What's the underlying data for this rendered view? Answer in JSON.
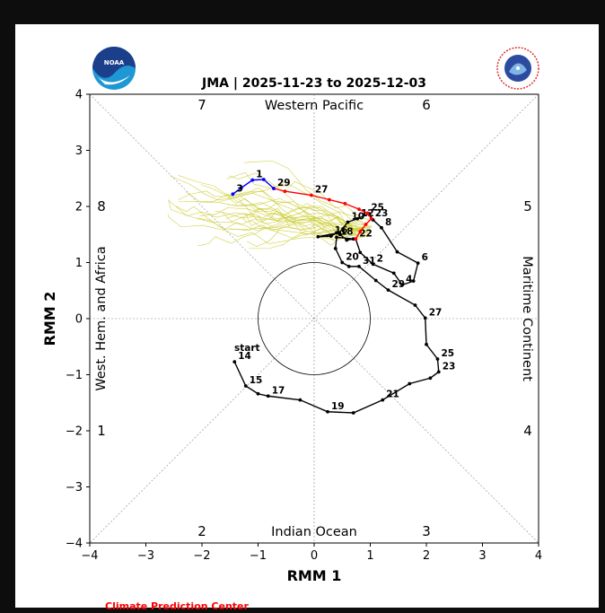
{
  "chart_data": {
    "type": "line",
    "title": "JMA | 2025-11-23 to 2025-12-03",
    "xlabel": "RMM 1",
    "ylabel": "RMM 2",
    "xlim": [
      -4,
      4
    ],
    "ylim": [
      -4,
      4
    ],
    "xticks": [
      "−4",
      "−3",
      "−2",
      "−1",
      "0",
      "1",
      "2",
      "3",
      "4"
    ],
    "yticks": [
      "−4",
      "−3",
      "−2",
      "−1",
      "0",
      "1",
      "2",
      "3",
      "4"
    ],
    "regions": {
      "top": "Western Pacific",
      "bottom": "Indian Ocean",
      "left": "West. Hem. and Africa",
      "right": "Maritime Continent"
    },
    "phase_labels": [
      "1",
      "2",
      "3",
      "4",
      "5",
      "6",
      "7",
      "8"
    ],
    "start_label": "start",
    "credit": "Climate Prediction Center",
    "colors": {
      "observed": "#000000",
      "ensemble": "#cccc33",
      "ensemble_mean_a": "#ff0000",
      "ensemble_mean_b": "#0000ff"
    },
    "series": [
      {
        "name": "",
        "color": "#000000",
        "x": [
          -1.42,
          -1.22,
          -1.0,
          -0.82,
          -0.25,
          0.24,
          0.7,
          1.22,
          1.7,
          2.07,
          2.22,
          2.2,
          2.0,
          1.98,
          1.8,
          1.32,
          1.1,
          0.8,
          0.62,
          0.5,
          0.38,
          0.4,
          0.7,
          0.58,
          0.46,
          0.4,
          0.3,
          0.07,
          0.45,
          0.6,
          0.77,
          0.98,
          1.05,
          1.2,
          1.48,
          1.85,
          1.77,
          1.57,
          1.42,
          1.05,
          0.82,
          0.74
        ],
        "y": [
          -0.77,
          -1.2,
          -1.34,
          -1.38,
          -1.45,
          -1.66,
          -1.68,
          -1.45,
          -1.16,
          -1.06,
          -0.95,
          -0.72,
          -0.46,
          0.01,
          0.24,
          0.51,
          0.68,
          0.93,
          0.93,
          1.0,
          1.25,
          1.45,
          1.42,
          1.4,
          1.5,
          1.53,
          1.47,
          1.46,
          1.53,
          1.72,
          1.78,
          1.87,
          1.76,
          1.62,
          1.19,
          0.99,
          0.67,
          0.6,
          0.81,
          0.97,
          1.18,
          1.42
        ],
        "point_labels": [
          {
            "i": 0,
            "text": "14"
          },
          {
            "i": 1,
            "text": "15"
          },
          {
            "i": 3,
            "text": "17"
          },
          {
            "i": 5,
            "text": "19"
          },
          {
            "i": 7,
            "text": "21"
          },
          {
            "i": 10,
            "text": "23"
          },
          {
            "i": 11,
            "text": "25"
          },
          {
            "i": 13,
            "text": "27"
          },
          {
            "i": 15,
            "text": "29"
          },
          {
            "i": 17,
            "text": "31"
          },
          {
            "i": 19,
            "text": "20"
          },
          {
            "i": 21,
            "text": "18"
          },
          {
            "i": 26,
            "text": "16"
          },
          {
            "i": 29,
            "text": "10"
          },
          {
            "i": 30,
            "text": "12"
          },
          {
            "i": 33,
            "text": "8"
          },
          {
            "i": 35,
            "text": "6"
          },
          {
            "i": 37,
            "text": "4"
          },
          {
            "i": 39,
            "text": "2"
          },
          {
            "i": 41,
            "text": "22"
          }
        ]
      },
      {
        "name": "",
        "color": "#ff0000",
        "x": [
          0.74,
          0.82,
          0.92,
          1.02,
          0.95,
          0.8,
          0.55,
          0.27,
          -0.05,
          -0.52,
          -0.72
        ],
        "y": [
          1.42,
          1.55,
          1.68,
          1.78,
          1.88,
          1.95,
          2.05,
          2.12,
          2.2,
          2.27,
          2.32
        ],
        "point_labels": [
          {
            "i": 3,
            "text": "23"
          },
          {
            "i": 4,
            "text": "25"
          },
          {
            "i": 8,
            "text": "27"
          },
          {
            "i": 10,
            "text": "29"
          }
        ]
      },
      {
        "name": "",
        "color": "#0000ff",
        "x": [
          -0.72,
          -0.9,
          -1.1,
          -1.3,
          -1.45
        ],
        "y": [
          2.32,
          2.48,
          2.47,
          2.33,
          2.22
        ],
        "point_labels": [
          {
            "i": 2,
            "text": "1"
          },
          {
            "i": 4,
            "text": "3"
          }
        ]
      }
    ],
    "ensemble_members": 30,
    "grid": "diagonal dashed",
    "legend": "none"
  }
}
